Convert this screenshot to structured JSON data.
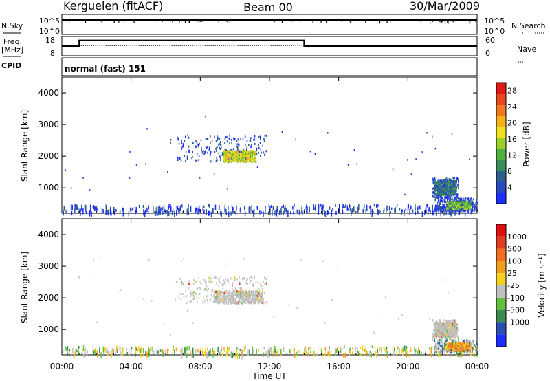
{
  "header": {
    "station": "Kerguelen (fitACF)",
    "beam": "Beam 00",
    "date": "30/Mar/2009"
  },
  "status_panels": {
    "nsky_label": "N.Sky",
    "nsky_ticks": [
      "10^5",
      "10^0"
    ],
    "nsearch_label": "N.Search",
    "nsearch_ticks": [
      "10^5",
      "10^0"
    ],
    "freq_label": [
      "Freq.",
      "[MHz]"
    ],
    "freq_ticks": [
      "18",
      "8"
    ],
    "nave_label": "Nave",
    "nave_ticks": [
      "60",
      "0"
    ],
    "freq_steps_hours": [
      [
        0,
        1,
        13.0
      ],
      [
        1,
        14,
        16.0
      ],
      [
        14,
        24,
        13.0
      ]
    ],
    "cpid_label": "CPID",
    "cpid_value": "normal (fast) 151"
  },
  "chart_data": [
    {
      "type": "heatmap",
      "name_panel": "power",
      "ylabel": "Slant Range [km]",
      "yticks": [
        "1000",
        "2000",
        "3000",
        "4000"
      ],
      "ylim": [
        200,
        4500
      ],
      "xlim": [
        0,
        24
      ],
      "colorbar": {
        "label": "Power [dB]",
        "ticks": [
          "4",
          "8",
          "12",
          "16",
          "20",
          "24",
          "28"
        ],
        "colors": [
          "#1d2cff",
          "#2748c0",
          "#2d5e8e",
          "#3a8c5e",
          "#4fb040",
          "#9ad02a",
          "#f0e020",
          "#f5b020",
          "#f07820",
          "#e84820",
          "#e01818"
        ],
        "range": [
          0,
          30
        ]
      },
      "echo_regions": [
        {
          "t0": 6.6,
          "t1": 11.8,
          "r0": 1850,
          "r1": 2700,
          "core_t0": 9.3,
          "core_t1": 11.2,
          "core_r0": 1850,
          "core_r1": 2200,
          "level": 14
        },
        {
          "t0": 21.4,
          "t1": 22.9,
          "r0": 700,
          "r1": 1350,
          "core_t0": 21.5,
          "core_t1": 22.8,
          "core_r0": 800,
          "core_r1": 1250,
          "level": 4
        },
        {
          "t0": 21.5,
          "t1": 24.0,
          "r0": 300,
          "r1": 700,
          "core_t0": 22.2,
          "core_t1": 23.6,
          "core_r0": 350,
          "core_r1": 600,
          "level": 10
        }
      ]
    },
    {
      "type": "heatmap",
      "name_panel": "velocity",
      "ylabel": "Slant Range [km]",
      "yticks": [
        "1000",
        "2000",
        "3000",
        "4000"
      ],
      "ylim": [
        200,
        4500
      ],
      "xlim": [
        0,
        24
      ],
      "xticks": [
        "00:00",
        "04:00",
        "08:00",
        "12:00",
        "16:00",
        "20:00",
        "00:00"
      ],
      "xlabel": "Time UT",
      "colorbar": {
        "label": "Velocity [m s⁻¹]",
        "ticks": [
          "1000",
          "500",
          "100",
          "25",
          "-25",
          "-100",
          "-500",
          "-1000"
        ],
        "colors": [
          "#1d2cff",
          "#2b4fb0",
          "#3c8a50",
          "#62c040",
          "#c0c0c0",
          "#f5d020",
          "#f0a020",
          "#f07020",
          "#e04020",
          "#e01010"
        ]
      },
      "echo_regions": [
        {
          "t0": 6.6,
          "t1": 11.8,
          "r0": 1850,
          "r1": 2700,
          "core_t0": 8.8,
          "core_t1": 11.6,
          "core_r0": 1850,
          "core_r1": 2250,
          "level": "ground"
        },
        {
          "t0": 21.4,
          "t1": 22.9,
          "r0": 700,
          "r1": 1350,
          "core_t0": 21.5,
          "core_t1": 22.8,
          "core_r0": 800,
          "core_r1": 1250,
          "level": "ground"
        },
        {
          "t0": 21.5,
          "t1": 24.0,
          "r0": 300,
          "r1": 700,
          "core_t0": 22.2,
          "core_t1": 23.6,
          "core_r0": 350,
          "core_r1": 600,
          "level": "negative"
        }
      ]
    }
  ]
}
